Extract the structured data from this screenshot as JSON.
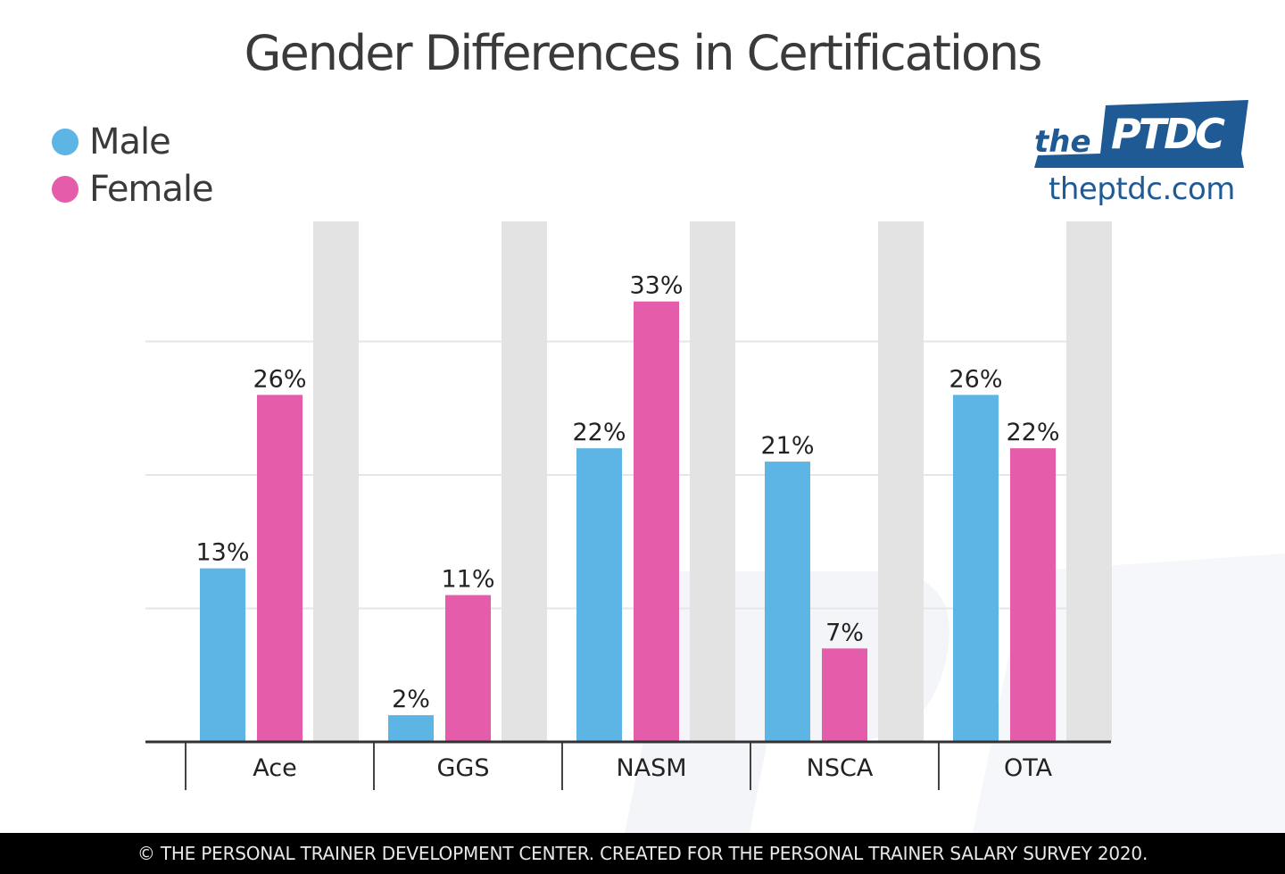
{
  "chart_data": {
    "type": "bar",
    "title": "Gender Differences in Certifications",
    "xlabel": "",
    "ylabel": "",
    "categories": [
      "Ace",
      "GGS",
      "NASM",
      "NSCA",
      "OTA"
    ],
    "series": [
      {
        "name": "Male",
        "color": "#5db5e5",
        "values": [
          13,
          2,
          22,
          21,
          26
        ],
        "labels": [
          "13%",
          "2%",
          "22%",
          "21%",
          "26%"
        ]
      },
      {
        "name": "Female",
        "color": "#e45caa",
        "values": [
          26,
          11,
          33,
          7,
          22
        ],
        "labels": [
          "26%",
          "11%",
          "33%",
          "7%",
          "22%"
        ]
      }
    ],
    "background_bar_color": "#e3e3e3",
    "ylim": [
      0,
      39
    ],
    "gridlines": [
      10,
      20,
      30
    ],
    "grid": true,
    "legend_placement": "top-left"
  },
  "logo": {
    "text": "thePTDC",
    "url_text": "theptdc.com",
    "color": "#1f5a94"
  },
  "footer": {
    "text": "© THE PERSONAL TRAINER DEVELOPMENT CENTER. CREATED FOR THE PERSONAL TRAINER SALARY SURVEY 2020."
  }
}
